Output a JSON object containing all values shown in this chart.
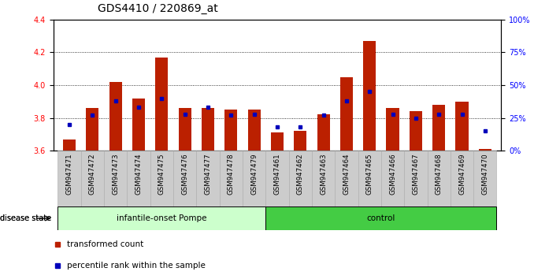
{
  "title": "GDS4410 / 220869_at",
  "samples": [
    "GSM947471",
    "GSM947472",
    "GSM947473",
    "GSM947474",
    "GSM947475",
    "GSM947476",
    "GSM947477",
    "GSM947478",
    "GSM947479",
    "GSM947461",
    "GSM947462",
    "GSM947463",
    "GSM947464",
    "GSM947465",
    "GSM947466",
    "GSM947467",
    "GSM947468",
    "GSM947469",
    "GSM947470"
  ],
  "red_values": [
    3.67,
    3.86,
    4.02,
    3.92,
    4.17,
    3.86,
    3.86,
    3.85,
    3.85,
    3.71,
    3.72,
    3.82,
    4.05,
    4.27,
    3.86,
    3.84,
    3.88,
    3.9,
    3.61
  ],
  "blue_percentiles": [
    20,
    27,
    38,
    33,
    40,
    28,
    33,
    27,
    28,
    18,
    18,
    27,
    38,
    45,
    28,
    25,
    28,
    28,
    15
  ],
  "ymin": 3.6,
  "ymax": 4.4,
  "yticks_left": [
    3.6,
    3.8,
    4.0,
    4.2,
    4.4
  ],
  "yticks_right": [
    0,
    25,
    50,
    75,
    100
  ],
  "ytick_right_labels": [
    "0%",
    "25%",
    "50%",
    "75%",
    "100%"
  ],
  "group1_label": "infantile-onset Pompe",
  "group2_label": "control",
  "group1_count": 9,
  "group2_count": 10,
  "disease_state_label": "disease state",
  "legend_red": "transformed count",
  "legend_blue": "percentile rank within the sample",
  "bar_color": "#bb2000",
  "blue_color": "#0000bb",
  "group1_bg": "#ccffcc",
  "group2_bg": "#44cc44",
  "xtick_bg": "#cccccc",
  "title_fontsize": 10,
  "tick_fontsize": 7,
  "bar_width": 0.55
}
